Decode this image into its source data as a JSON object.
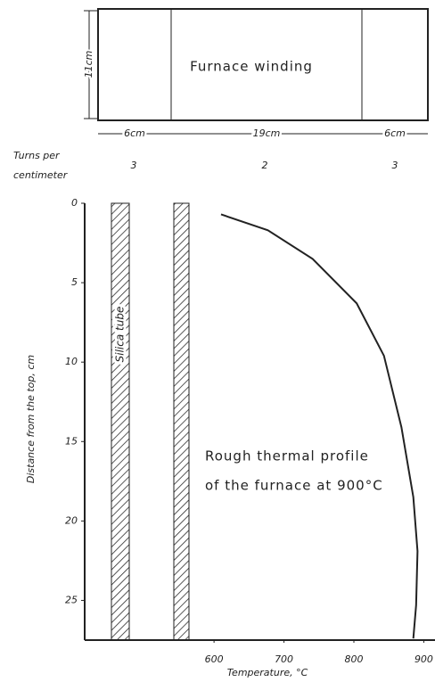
{
  "diagram": {
    "winding_label": "Furnace winding",
    "height_label": "11cm",
    "sections": [
      "6cm",
      "19cm",
      "6cm"
    ],
    "turns_title": [
      "Turns per",
      "centimeter"
    ],
    "turns": [
      3,
      2,
      3
    ],
    "tube_label": "Silica tube"
  },
  "chart_data": {
    "type": "line",
    "x_label": "Temperature, °C",
    "y_label": "Distance from the top, cm",
    "annotation": [
      "Rough thermal profile",
      "of the furnace at 900°C"
    ],
    "x": [
      610,
      677,
      741,
      804,
      843,
      868,
      885,
      891,
      889,
      885
    ],
    "series": [
      {
        "color": "#222222",
        "values": [
          0.7,
          1.7,
          3.5,
          6.3,
          9.6,
          14.1,
          18.5,
          21.9,
          25.3,
          27.4
        ]
      }
    ],
    "xlim": [
      415,
      916
    ],
    "xticks": [
      600,
      700,
      800,
      900
    ],
    "ylim": [
      27.5,
      0
    ],
    "yticks": [
      0,
      5,
      10,
      15,
      20,
      25
    ]
  }
}
